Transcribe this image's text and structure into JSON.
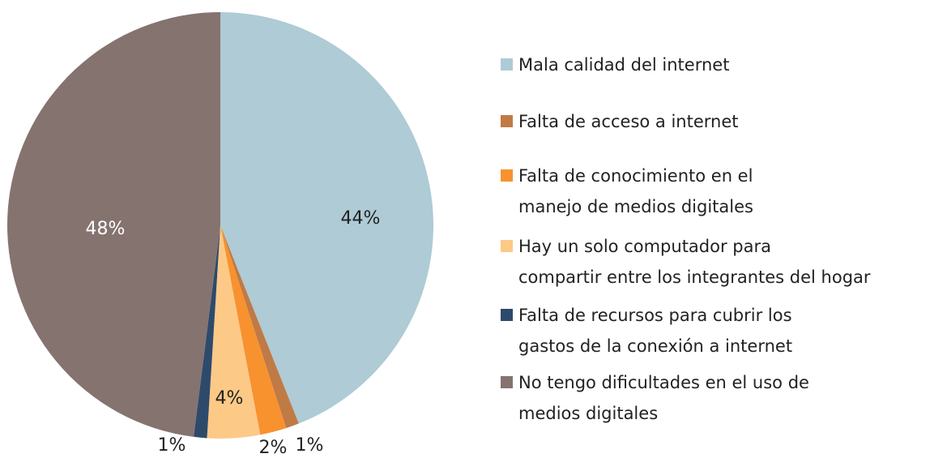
{
  "chart_data": {
    "type": "pie",
    "categories": [
      "Mala calidad del internet",
      "Falta de acceso a internet",
      "Falta de conocimiento en el\nmanejo de medios digitales",
      "Hay un solo computador para\ncompartir entre los integrantes del hogar",
      "Falta de recursos para cubrir los\ngastos de la conexión a internet",
      "No tengo dificultades en el uso de\nmedios digitales"
    ],
    "values": [
      44,
      1,
      2,
      4,
      1,
      48
    ],
    "value_labels": [
      "44%",
      "1%",
      "2%",
      "4%",
      "1%",
      "48%"
    ],
    "colors": [
      "#aecbd6",
      "#c07a45",
      "#f7922f",
      "#fdc987",
      "#2e4a6b",
      "#857370"
    ],
    "legend": "right"
  }
}
